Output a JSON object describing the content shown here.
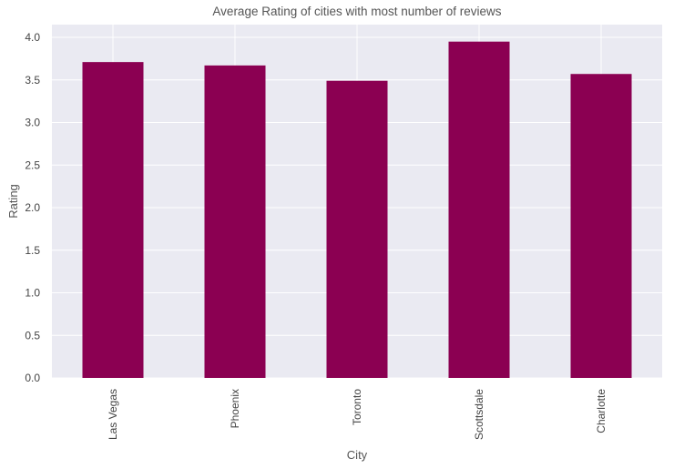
{
  "chart_data": {
    "type": "bar",
    "title": "Average Rating of cities with most number of reviews",
    "xlabel": "City",
    "ylabel": "Rating",
    "categories": [
      "Las Vegas",
      "Phoenix",
      "Toronto",
      "Scottsdale",
      "Charlotte"
    ],
    "values": [
      3.71,
      3.67,
      3.49,
      3.95,
      3.57
    ],
    "ylim": [
      0,
      4.15
    ],
    "yticks": [
      "0.0",
      "0.5",
      "1.0",
      "1.5",
      "2.0",
      "2.5",
      "3.0",
      "3.5",
      "4.0"
    ],
    "grid": true,
    "legend": "none",
    "x_tick_rotation": "vertical",
    "bar_color": "#8b0052",
    "background_color": "#eaeaf2",
    "grid_color": "#ffffff"
  }
}
